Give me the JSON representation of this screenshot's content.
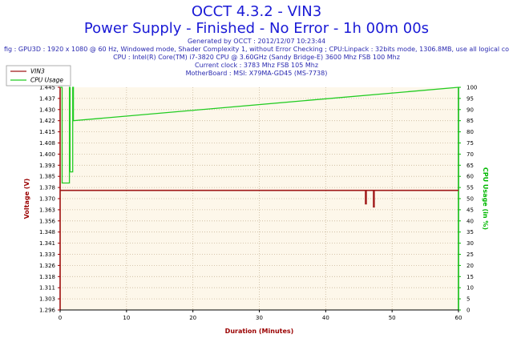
{
  "header": {
    "title": "OCCT 4.3.2 - VIN3",
    "subtitle": "Power Supply - Finished - No Error - 1h 00m 00s",
    "info_lines": [
      "Generated by OCCT : 2012/12/07 10:23:44",
      "fig : GPU3D : 1920 x 1080 @ 60 Hz, Windowed mode, Shader Complexity 1, without Error Checking ; CPU:Linpack : 32bits mode, 1306.8MB, use all logical co",
      "CPU : Intel(R) Core(TM) i7-3820 CPU @ 3.60GHz (Sandy Bridge-E) 3600 Mhz FSB 100 Mhz",
      "Current clock : 3783 Mhz FSB 105 Mhz",
      "MotherBoard : MSI: X79MA-GD45 (MS-7738)"
    ]
  },
  "colors": {
    "plot_bg": "#fdf7ea",
    "grid": "#c9b79a",
    "axis_left": "#9a0000",
    "axis_right": "#00b800",
    "vin3": "#a01818",
    "cpu": "#22cc22",
    "title": "#1a1ad6",
    "info": "#2a2ab0"
  },
  "chart_data": {
    "type": "line",
    "xlabel": "Duration (Minutes)",
    "ylabel": "Voltage (V)",
    "y2label": "CPU Usage (in %)",
    "xlim": [
      0,
      60
    ],
    "ylim": [
      1.296,
      1.445
    ],
    "y2lim": [
      0,
      100
    ],
    "x_ticks": [
      "0",
      "10",
      "20",
      "30",
      "40",
      "50",
      "60"
    ],
    "y_ticks": [
      "1.296",
      "1.303",
      "1.311",
      "1.318",
      "1.326",
      "1.333",
      "1.341",
      "1.348",
      "1.356",
      "1.363",
      "1.370",
      "1.378",
      "1.385",
      "1.393",
      "1.400",
      "1.408",
      "1.415",
      "1.422",
      "1.430",
      "1.437",
      "1.445"
    ],
    "y2_ticks": [
      "0",
      "5",
      "10",
      "15",
      "20",
      "25",
      "30",
      "35",
      "40",
      "45",
      "50",
      "55",
      "60",
      "65",
      "70",
      "75",
      "80",
      "85",
      "90",
      "95",
      "100"
    ],
    "grid": true,
    "legend_position": "top-left",
    "series": [
      {
        "name": "VIN3",
        "axis": "left",
        "x": [
          0,
          46.0,
          46.0,
          46.1,
          46.1,
          47.2,
          47.2,
          47.3,
          47.3,
          60
        ],
        "values": [
          1.376,
          1.376,
          1.367,
          1.367,
          1.376,
          1.376,
          1.365,
          1.365,
          1.376,
          1.376
        ]
      },
      {
        "name": "CPU Usage",
        "axis": "right",
        "x": [
          0,
          0.3,
          0.3,
          1.4,
          1.4,
          1.5,
          1.5,
          1.9,
          1.9,
          2.0,
          2.0,
          60
        ],
        "values": [
          100,
          100,
          57,
          57,
          100,
          100,
          62,
          62,
          100,
          100,
          85,
          100
        ]
      }
    ]
  }
}
